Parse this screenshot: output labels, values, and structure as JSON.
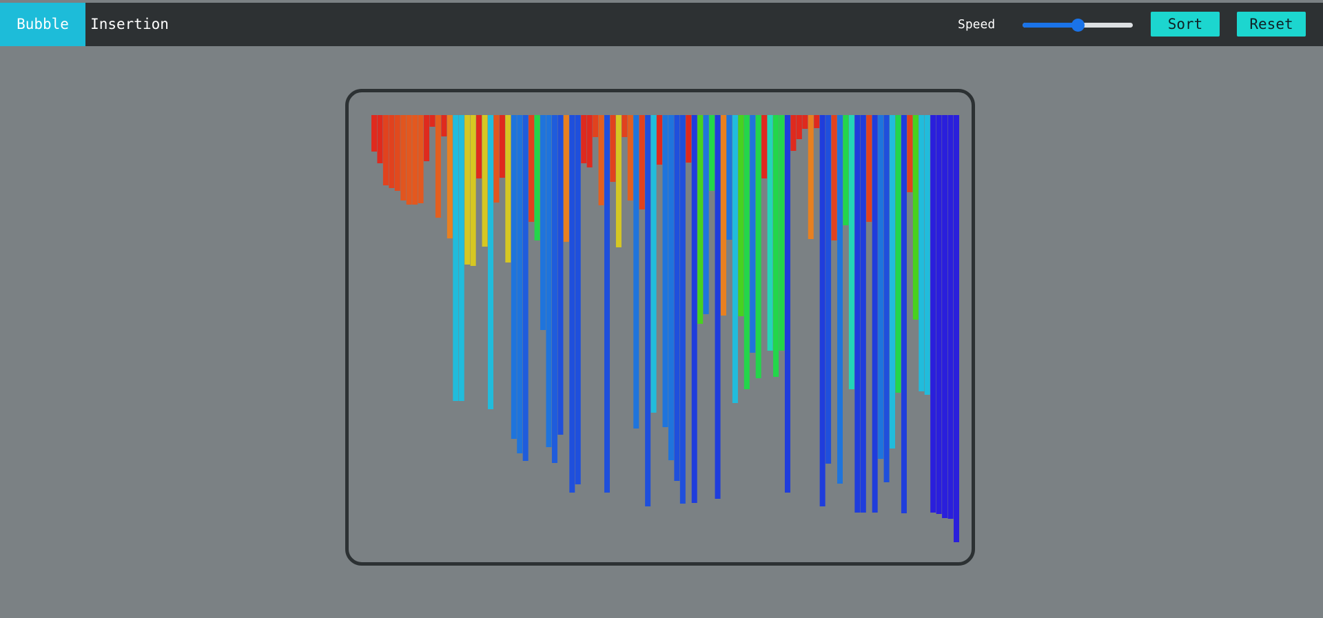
{
  "toolbar": {
    "tabs": [
      {
        "label": "Bubble",
        "active": true
      },
      {
        "label": "Insertion",
        "active": false
      }
    ],
    "speed_label": "Speed",
    "speed_value_fraction": 0.5,
    "sort_label": "Sort",
    "reset_label": "Reset"
  },
  "colors": {
    "topbar": "#2d3133",
    "active_tab": "#1dbcd9",
    "button": "#1cd6cf",
    "background": "#7b8184",
    "frame_border": "#2c3133",
    "slider_fill": "#1a73e8"
  },
  "chart_data": {
    "type": "bar",
    "orientation": "hanging",
    "bar_count": 101,
    "values": [
      53,
      70,
      102,
      106,
      110,
      124,
      130,
      130,
      128,
      67,
      17,
      149,
      31,
      179,
      415,
      415,
      217,
      219,
      92,
      191,
      427,
      127,
      91,
      214,
      470,
      491,
      502,
      155,
      182,
      312,
      482,
      505,
      464,
      184,
      548,
      536,
      70,
      76,
      32,
      131,
      548,
      97,
      192,
      32,
      124,
      455,
      137,
      568,
      432,
      72,
      453,
      501,
      531,
      564,
      69,
      563,
      303,
      289,
      110,
      557,
      291,
      181,
      418,
      292,
      398,
      345,
      382,
      92,
      342,
      380,
      342,
      548,
      52,
      35,
      20,
      180,
      19,
      568,
      506,
      182,
      535,
      160,
      398,
      577,
      577,
      155,
      577,
      499,
      533,
      484,
      403,
      578,
      112,
      297,
      401,
      406,
      577,
      579,
      585,
      586,
      620
    ],
    "colors": [
      "#df2a1e",
      "#df2a1e",
      "#e1421e",
      "#e1421e",
      "#e14a1e",
      "#e1551f",
      "#e3581f",
      "#e3581f",
      "#e3581f",
      "#df2a1e",
      "#df2a1e",
      "#e35f1f",
      "#df2a1e",
      "#e88020",
      "#21bcdc",
      "#21bcdc",
      "#d6c722",
      "#d6c722",
      "#df2a1e",
      "#d6c722",
      "#21bcdc",
      "#e1551f",
      "#df2a1e",
      "#d6c722",
      "#1f74dc",
      "#1f74dc",
      "#1f5cdc",
      "#e1421e",
      "#23d64a",
      "#1f74dc",
      "#1f74dc",
      "#1f5cdc",
      "#1f4fdc",
      "#e88020",
      "#1f4fdc",
      "#1f4fdc",
      "#df2a1e",
      "#df2a1e",
      "#e1421e",
      "#e35f1f",
      "#1f4fdc",
      "#e1421e",
      "#d6c722",
      "#e1421e",
      "#e35f1f",
      "#1f74dc",
      "#e1421e",
      "#1f4fdc",
      "#21bcdc",
      "#df2a1e",
      "#1f74dc",
      "#1f74dc",
      "#1f4fdc",
      "#1f4fdc",
      "#df2a1e",
      "#1f3ddc",
      "#47d21f",
      "#1f74dc",
      "#23d64a",
      "#1f3ddc",
      "#e88020",
      "#1f74dc",
      "#21bcdc",
      "#47d21f",
      "#23d64a",
      "#1f74dc",
      "#23d64a",
      "#df2a1e",
      "#23d6b8",
      "#23d64a",
      "#23d64a",
      "#1f3ddc",
      "#df2a1e",
      "#df2a1e",
      "#df2a1e",
      "#e88020",
      "#df2a1e",
      "#1f3ddc",
      "#1f4fdc",
      "#e1421e",
      "#1f74dc",
      "#23d64a",
      "#23d6b8",
      "#1f3ddc",
      "#1f3ddc",
      "#e1421e",
      "#1f3ddc",
      "#1f74dc",
      "#1f4fdc",
      "#21bcdc",
      "#23d64a",
      "#1f3ddc",
      "#e1421e",
      "#47d21f",
      "#21bcdc",
      "#21bcdc",
      "#2a1fdc",
      "#2a1fdc",
      "#2a1fdc",
      "#2a1fdc",
      "#2a1fdc"
    ]
  }
}
